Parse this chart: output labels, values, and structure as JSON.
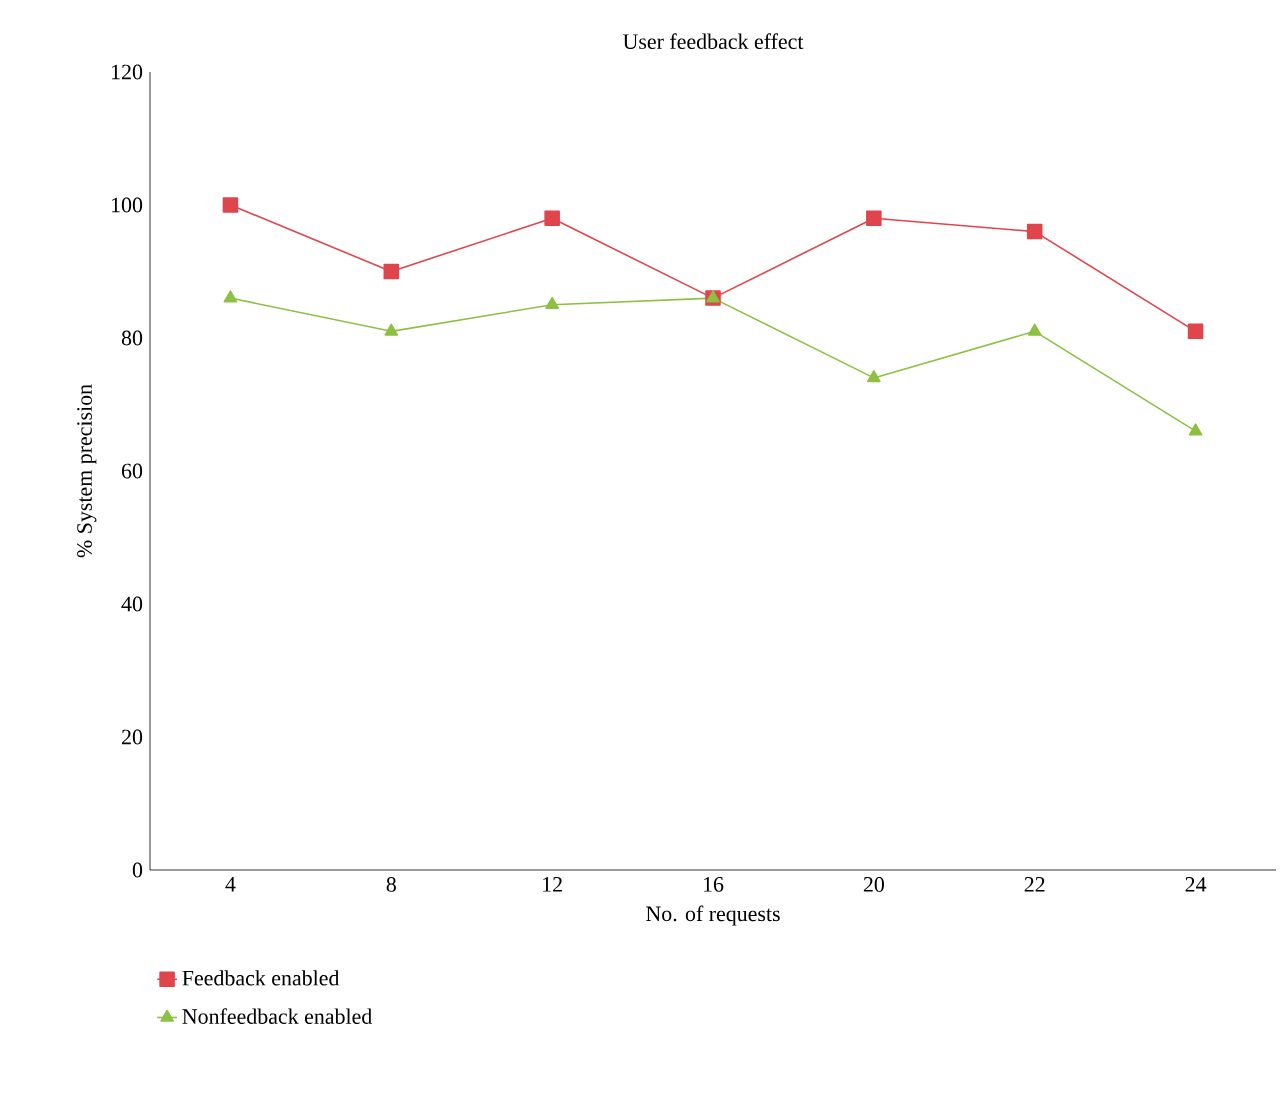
{
  "chart_data": {
    "type": "line",
    "title": "User feedback effect",
    "xlabel": "No. of requests",
    "ylabel": "% System precision",
    "categories": [
      "4",
      "8",
      "12",
      "16",
      "20",
      "22",
      "24"
    ],
    "series": [
      {
        "name": "Feedback enabled",
        "color": "#e0454b",
        "marker": "square",
        "values": [
          100,
          90,
          98,
          86,
          98,
          96,
          81
        ]
      },
      {
        "name": "Nonfeedback enabled",
        "color": "#8dc043",
        "marker": "triangle",
        "values": [
          86,
          81,
          85,
          86,
          74,
          81,
          66
        ]
      }
    ],
    "ylim": [
      0,
      120
    ],
    "yticks": [
      0,
      20,
      40,
      60,
      80,
      100,
      120
    ],
    "legend": "bottom left"
  }
}
